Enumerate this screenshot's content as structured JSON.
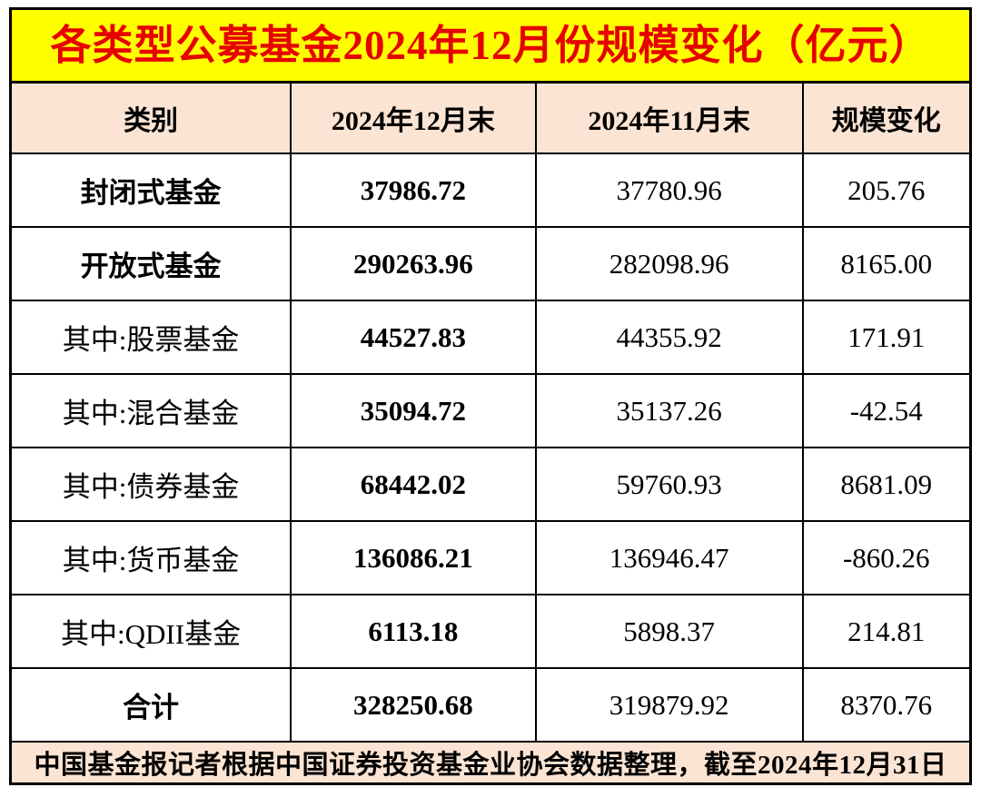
{
  "page": {
    "title": "各类型公募基金2024年12月份规模变化（亿元）",
    "footer_note": "中国基金报记者根据中国证券投资基金业协会数据整理，截至2024年12月31日"
  },
  "colors": {
    "title_bg": "#ffff00",
    "title_text": "#e60000",
    "shaded_cell_bg": "#fbe4d3",
    "cell_bg": "#ffffff",
    "border": "#000000",
    "body_text": "#000000"
  },
  "table": {
    "headers": [
      "类别",
      "2024年12月末",
      "2024年11月末",
      "规模变化"
    ],
    "rows": [
      {
        "cells": [
          "封闭式基金",
          "37986.72",
          "37780.96",
          "205.76"
        ]
      },
      {
        "cells": [
          "开放式基金",
          "290263.96",
          "282098.96",
          "8165.00"
        ]
      },
      {
        "cells": [
          "其中:股票基金",
          "44527.83",
          "44355.92",
          "171.91"
        ]
      },
      {
        "cells": [
          "其中:混合基金",
          "35094.72",
          "35137.26",
          "-42.54"
        ]
      },
      {
        "cells": [
          "其中:债券基金",
          "68442.02",
          "59760.93",
          "8681.09"
        ]
      },
      {
        "cells": [
          "其中:货币基金",
          "136086.21",
          "136946.47",
          "-860.26"
        ]
      },
      {
        "cells": [
          "其中:QDII基金",
          "6113.18",
          "5898.37",
          "214.81"
        ]
      },
      {
        "cells": [
          "合计",
          "328250.68",
          "319879.92",
          "8370.76"
        ]
      }
    ]
  },
  "chart_data": {
    "type": "table",
    "title": "各类型公募基金2024年12月份规模变化（亿元）",
    "columns": [
      "类别",
      "2024年12月末",
      "2024年11月末",
      "规模变化"
    ],
    "rows": [
      [
        "封闭式基金",
        37986.72,
        37780.96,
        205.76
      ],
      [
        "开放式基金",
        290263.96,
        282098.96,
        8165.0
      ],
      [
        "其中:股票基金",
        44527.83,
        44355.92,
        171.91
      ],
      [
        "其中:混合基金",
        35094.72,
        35137.26,
        -42.54
      ],
      [
        "其中:债券基金",
        68442.02,
        59760.93,
        8681.09
      ],
      [
        "其中:货币基金",
        136086.21,
        136946.47,
        -860.26
      ],
      [
        "其中:QDII基金",
        6113.18,
        5898.37,
        214.81
      ],
      [
        "合计",
        328250.68,
        319879.92,
        8370.76
      ]
    ],
    "source_note": "中国基金报记者根据中国证券投资基金业协会数据整理，截至2024年12月31日",
    "units": "亿元"
  }
}
